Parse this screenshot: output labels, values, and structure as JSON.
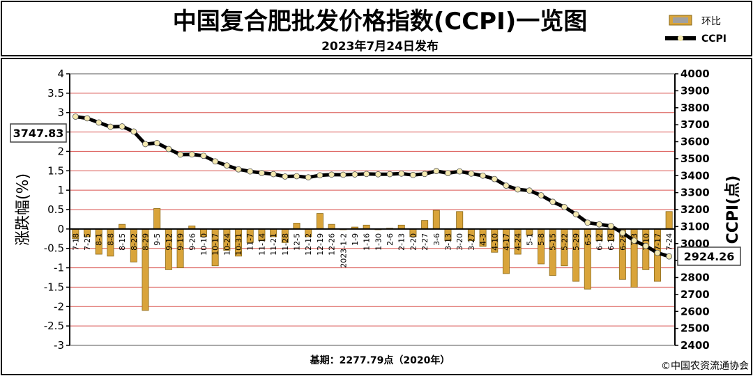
{
  "header": {
    "title": "中国复合肥批发价格指数(CCPI)一览图",
    "date": "2023年7月24日发布"
  },
  "footer": {
    "base": "基期：2277.79点（2020年）",
    "copyright": "©中国农资流通协会"
  },
  "colors": {
    "bar": "#d9a43a",
    "bar_edge": "#8a6a1a",
    "line": "#000000",
    "marker": "#f4e9b0",
    "grid": "#d9534f",
    "plot_bg": "#ffffff"
  },
  "chart_data": {
    "type": "bar",
    "legend": {
      "position": "top-right",
      "items": [
        "环比",
        "CCPI"
      ]
    },
    "ylabel_left": "涨跌幅(%)",
    "ylabel_right": "CCPI(点)",
    "ylim_left": [
      -3,
      4
    ],
    "ylim_right": [
      2400,
      4000
    ],
    "yticks_left": [
      "4",
      "3.5",
      "3",
      "2.5",
      "2",
      "1.5",
      "1",
      "0.5",
      "0",
      "-0.5",
      "-1",
      "-1.5",
      "-2",
      "-2.5",
      "-3"
    ],
    "yticks_right": [
      "4000",
      "3900",
      "3800",
      "3700",
      "3600",
      "3500",
      "3400",
      "3300",
      "3200",
      "3100",
      "3000",
      "2900",
      "2800",
      "2700",
      "2600",
      "2500",
      "2400"
    ],
    "grid": true,
    "first_label": "3747.83",
    "last_label": "2924.26",
    "x_labels": [
      "7-18",
      "7-25",
      "8-1",
      "8-8",
      "8-15",
      "8-22",
      "8-29",
      "9-5",
      "9-12",
      "9-19",
      "9-26",
      "10-10",
      "10-17",
      "10-24",
      "10-31",
      "11-7",
      "11-14",
      "11-21",
      "11-28",
      "12-5",
      "12-12",
      "12-19",
      "12-26",
      "2023-1-2",
      "1-9",
      "1-16",
      "1-30",
      "2-6",
      "2-13",
      "2-20",
      "2-27",
      "3-6",
      "3-13",
      "3-20",
      "3-27",
      "4-3",
      "4-10",
      "4-17",
      "4-24",
      "5-1",
      "5-8",
      "5-15",
      "5-22",
      "5-29",
      "6-5",
      "6-12",
      "6-19",
      "6-26",
      "7-3",
      "7-10",
      "7-17",
      "7-24"
    ],
    "series": [
      {
        "name": "环比",
        "values": [
          -0.25,
          -0.2,
          -0.65,
          -0.7,
          0.12,
          -0.85,
          -2.1,
          0.53,
          -1.05,
          -1.0,
          0.08,
          -0.2,
          -0.95,
          -0.55,
          -0.7,
          -0.35,
          -0.3,
          -0.2,
          -0.35,
          0.15,
          -0.2,
          0.4,
          0.12,
          -0.02,
          0.05,
          0.1,
          -0.02,
          0.02,
          0.1,
          -0.2,
          0.22,
          0.48,
          -0.3,
          0.45,
          -0.3,
          -0.45,
          -0.6,
          -1.15,
          -0.65,
          -0.15,
          -0.9,
          -1.2,
          -0.95,
          -1.35,
          -1.55,
          -0.3,
          -0.3,
          -1.3,
          -1.5,
          -1.05,
          -1.35,
          0.45
        ]
      },
      {
        "name": "CCPI",
        "values": [
          3747.83,
          3738,
          3713,
          3688,
          3690,
          3660,
          3586,
          3592,
          3557,
          3524,
          3525,
          3517,
          3484,
          3460,
          3437,
          3425,
          3416,
          3409,
          3395,
          3397,
          3390,
          3402,
          3406,
          3405,
          3407,
          3410,
          3408,
          3409,
          3412,
          3404,
          3410,
          3427,
          3415,
          3425,
          3412,
          3400,
          3380,
          3341,
          3319,
          3312,
          3284,
          3246,
          3215,
          3172,
          3123,
          3113,
          3103,
          3063,
          3017,
          2986,
          2945,
          2924.26
        ]
      }
    ]
  }
}
